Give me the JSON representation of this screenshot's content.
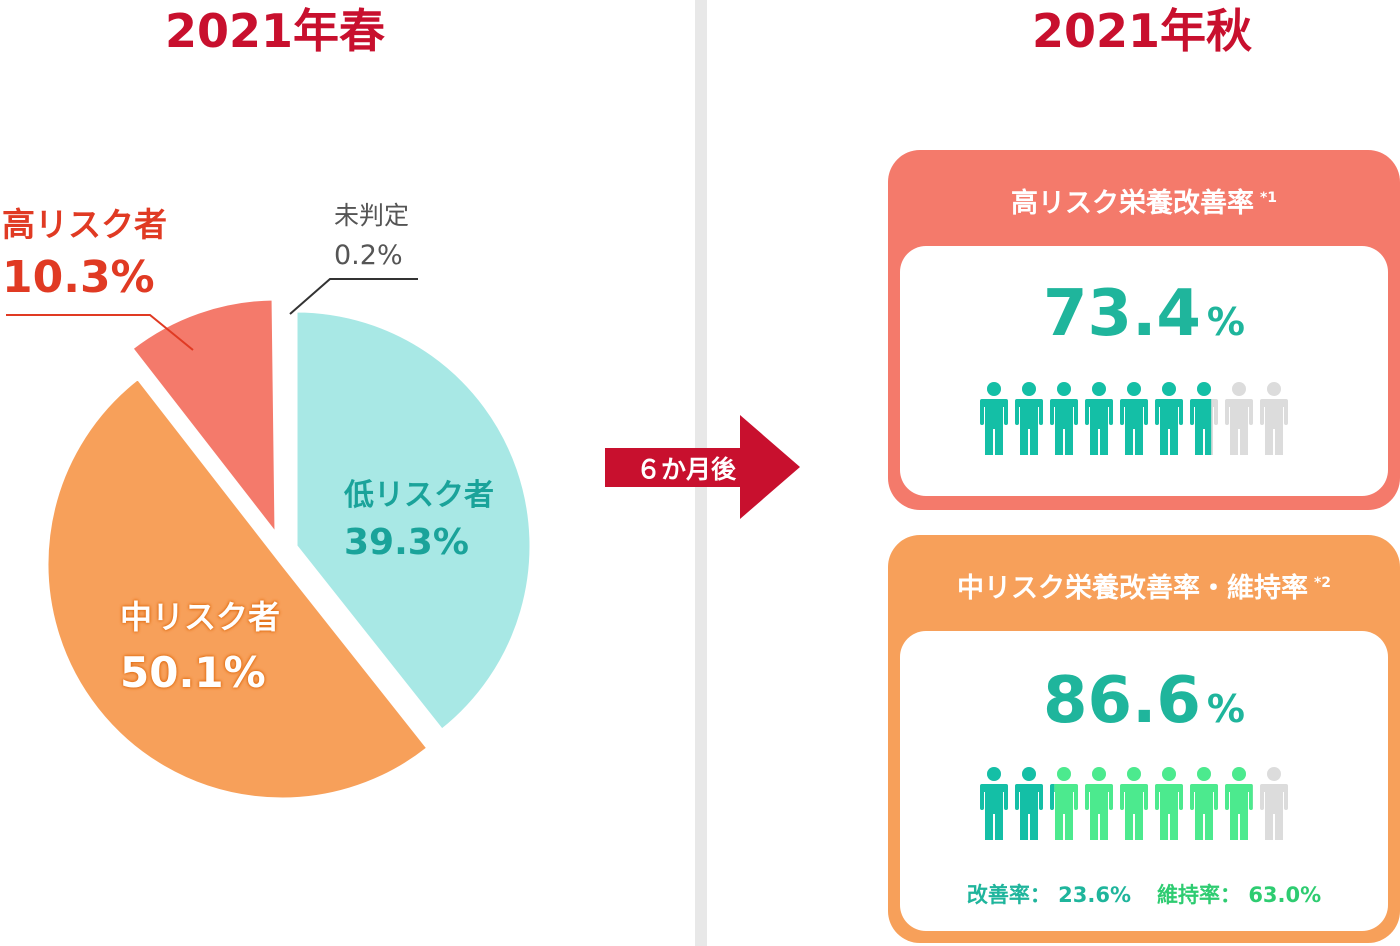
{
  "spring": {
    "title": "2021年春"
  },
  "autumn": {
    "title": "2021年秋"
  },
  "arrow": {
    "label": "６か月後"
  },
  "chart_data": [
    {
      "type": "pie",
      "title": "2021年春",
      "slices": [
        {
          "name": "低リスク者",
          "value": 39.3,
          "display": "39.3%",
          "color": "#a8e8e5"
        },
        {
          "name": "中リスク者",
          "value": 50.1,
          "display": "50.1%",
          "color": "#f7a05a"
        },
        {
          "name": "高リスク者",
          "value": 10.3,
          "display": "10.3%",
          "color": "#f47a6b"
        },
        {
          "name": "未判定",
          "value": 0.2,
          "display": "0.2%",
          "color": "#888888"
        }
      ]
    }
  ],
  "cards": {
    "high": {
      "title": "高リスク栄養改善率",
      "note": "*1",
      "value": "73.4",
      "unit": "%",
      "rate": 73.4,
      "icon_count": 9,
      "fill_color": "#14bfa6",
      "empty_color": "#dcdcdc"
    },
    "mid": {
      "title": "中リスク栄養改善率・維持率",
      "note": "*2",
      "value": "86.6",
      "unit": "%",
      "rate_improve": 23.6,
      "rate_maintain": 63.0,
      "icon_count": 9,
      "improve_color": "#14bfa6",
      "maintain_color": "#4cea8e",
      "empty_color": "#dcdcdc",
      "improve_label": "改善率：",
      "improve_value": "23.6%",
      "maintain_label": "維持率：",
      "maintain_value": "63.0%"
    }
  }
}
